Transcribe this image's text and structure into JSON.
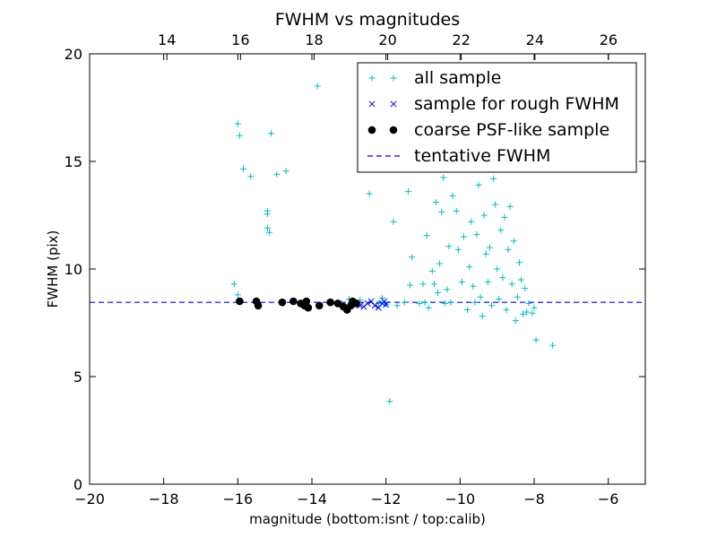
{
  "chart_data": {
    "type": "scatter",
    "title": "FWHM vs magnitudes",
    "xlabel": "magnitude (bottom:isnt / top:calib)",
    "ylabel": "FWHM (pix)",
    "xlim": [
      -20,
      -5
    ],
    "ylim": [
      0,
      20
    ],
    "top_xlim": [
      11.9,
      27
    ],
    "xticks": [
      "−20",
      "−18",
      "−16",
      "−14",
      "−12",
      "−10",
      "−8",
      "−6"
    ],
    "yticks": [
      "0",
      "5",
      "10",
      "15",
      "20"
    ],
    "top_xticks": [
      "14",
      "16",
      "18",
      "20",
      "22",
      "24",
      "26"
    ],
    "legend_position": "top-right",
    "legend": [
      "all sample",
      "sample for rough FWHM",
      "coarse PSF-like sample",
      "tentative FWHM"
    ],
    "colors": {
      "all": "#00bfbf",
      "rough": "#0000ff",
      "coarse": "#000000",
      "tentative": "#0000ff"
    },
    "tentative_fwhm": 8.45,
    "series": [
      {
        "name": "all sample",
        "marker": "plus",
        "points": [
          [
            -16.1,
            9.3
          ],
          [
            -16.0,
            8.8
          ],
          [
            -16.0,
            16.75
          ],
          [
            -15.95,
            16.2
          ],
          [
            -15.85,
            14.65
          ],
          [
            -15.65,
            14.3
          ],
          [
            -15.2,
            12.7
          ],
          [
            -15.2,
            12.55
          ],
          [
            -15.2,
            11.9
          ],
          [
            -15.15,
            11.7
          ],
          [
            -15.1,
            16.3
          ],
          [
            -14.95,
            14.4
          ],
          [
            -14.7,
            14.55
          ],
          [
            -13.85,
            18.5
          ],
          [
            -13.2,
            8.4
          ],
          [
            -13.0,
            8.6
          ],
          [
            -12.9,
            8.5
          ],
          [
            -12.7,
            8.55
          ],
          [
            -12.45,
            13.5
          ],
          [
            -12.2,
            8.4
          ],
          [
            -12.1,
            8.65
          ],
          [
            -12.0,
            8.35
          ],
          [
            -11.9,
            3.85
          ],
          [
            -11.8,
            12.2
          ],
          [
            -11.7,
            8.3
          ],
          [
            -11.5,
            8.45
          ],
          [
            -11.4,
            13.6
          ],
          [
            -11.35,
            9.25
          ],
          [
            -11.3,
            10.55
          ],
          [
            -11.1,
            8.4
          ],
          [
            -11.0,
            9.3
          ],
          [
            -10.95,
            8.45
          ],
          [
            -10.9,
            11.55
          ],
          [
            -10.85,
            8.2
          ],
          [
            -10.75,
            9.9
          ],
          [
            -10.7,
            9.3
          ],
          [
            -10.65,
            13.1
          ],
          [
            -10.6,
            8.9
          ],
          [
            -10.55,
            10.25
          ],
          [
            -10.5,
            12.65
          ],
          [
            -10.45,
            14.25
          ],
          [
            -10.4,
            8.4
          ],
          [
            -10.35,
            9.05
          ],
          [
            -10.3,
            11.05
          ],
          [
            -10.25,
            8.45
          ],
          [
            -10.2,
            13.4
          ],
          [
            -10.1,
            12.7
          ],
          [
            -10.05,
            10.9
          ],
          [
            -10.0,
            14.9
          ],
          [
            -9.95,
            9.4
          ],
          [
            -9.9,
            11.5
          ],
          [
            -9.8,
            8.1
          ],
          [
            -9.75,
            10.1
          ],
          [
            -9.7,
            12.2
          ],
          [
            -9.65,
            9.2
          ],
          [
            -9.6,
            8.45
          ],
          [
            -9.55,
            11.6
          ],
          [
            -9.5,
            13.9
          ],
          [
            -9.45,
            8.7
          ],
          [
            -9.4,
            7.8
          ],
          [
            -9.35,
            12.5
          ],
          [
            -9.3,
            10.7
          ],
          [
            -9.25,
            9.4
          ],
          [
            -9.2,
            11.0
          ],
          [
            -9.15,
            8.3
          ],
          [
            -9.1,
            14.2
          ],
          [
            -9.05,
            13.0
          ],
          [
            -9.0,
            10.0
          ],
          [
            -8.95,
            8.6
          ],
          [
            -8.9,
            11.8
          ],
          [
            -8.85,
            9.6
          ],
          [
            -8.8,
            12.4
          ],
          [
            -8.75,
            8.1
          ],
          [
            -8.7,
            10.9
          ],
          [
            -8.65,
            12.9
          ],
          [
            -8.6,
            9.3
          ],
          [
            -8.55,
            11.3
          ],
          [
            -8.5,
            7.6
          ],
          [
            -8.45,
            8.7
          ],
          [
            -8.4,
            10.3
          ],
          [
            -8.35,
            9.5
          ],
          [
            -8.3,
            7.9
          ],
          [
            -8.25,
            9.1
          ],
          [
            -8.2,
            8.0
          ],
          [
            -8.15,
            8.4
          ],
          [
            -8.05,
            7.95
          ],
          [
            -8.0,
            8.2
          ],
          [
            -7.95,
            6.7
          ],
          [
            -7.5,
            6.45
          ]
        ]
      },
      {
        "name": "sample for rough FWHM",
        "marker": "x",
        "points": [
          [
            -12.7,
            8.3
          ],
          [
            -12.6,
            8.25
          ],
          [
            -12.5,
            8.4
          ],
          [
            -12.4,
            8.5
          ],
          [
            -12.3,
            8.3
          ],
          [
            -12.2,
            8.2
          ],
          [
            -12.1,
            8.4
          ],
          [
            -12.05,
            8.5
          ],
          [
            -12.0,
            8.35
          ]
        ]
      },
      {
        "name": "coarse PSF-like sample",
        "marker": "dot",
        "points": [
          [
            -15.95,
            8.5
          ],
          [
            -15.5,
            8.5
          ],
          [
            -15.45,
            8.3
          ],
          [
            -14.8,
            8.45
          ],
          [
            -14.5,
            8.5
          ],
          [
            -14.3,
            8.4
          ],
          [
            -14.2,
            8.3
          ],
          [
            -14.15,
            8.5
          ],
          [
            -14.1,
            8.2
          ],
          [
            -13.8,
            8.3
          ],
          [
            -13.5,
            8.45
          ],
          [
            -13.3,
            8.4
          ],
          [
            -13.15,
            8.25
          ],
          [
            -13.05,
            8.1
          ],
          [
            -12.95,
            8.3
          ],
          [
            -12.9,
            8.5
          ],
          [
            -12.8,
            8.4
          ]
        ]
      }
    ]
  }
}
